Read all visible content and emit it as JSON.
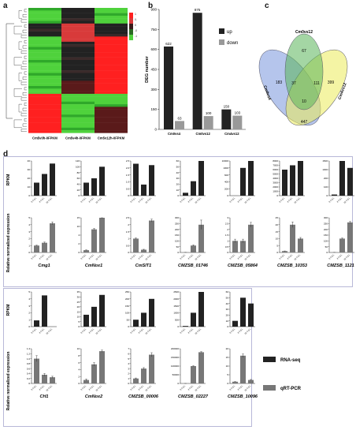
{
  "panels": {
    "a": {
      "letter": "a",
      "col_labels": [
        "Cm5v0h-0FPKM",
        "Cm5v4h-0FPKM",
        "Cm5v12h-0FPKM"
      ],
      "legend_ticks": [
        "1",
        "0.5",
        "0",
        "-0.5",
        "-1"
      ]
    },
    "b": {
      "letter": "b"
    },
    "c": {
      "letter": "c"
    },
    "d": {
      "letter": "d"
    }
  },
  "chart_data": [
    {
      "type": "bar",
      "id": "deg-counts",
      "ylabel": "DEG number",
      "ylim": [
        0,
        900
      ],
      "yticks": [
        0,
        150,
        300,
        450,
        600,
        750,
        900
      ],
      "categories": [
        "Cm0vs4",
        "Cm0vs12",
        "Cm4vs12"
      ],
      "series": [
        {
          "name": "up",
          "color": "#222222",
          "values": [
            622,
            875,
            150
          ]
        },
        {
          "name": "down",
          "color": "#999999",
          "values": [
            63,
            100,
            103
          ]
        }
      ],
      "legend": "top-right"
    },
    {
      "type": "venn",
      "id": "venn",
      "sets": [
        "Cm0vs4",
        "Cm0vs12",
        "Cm4vs12"
      ],
      "set_labels": [
        "Cm0vs4",
        "Cm0vs12",
        "Cm4vs12"
      ],
      "regions": {
        "only_0vs4": "183",
        "only_0vs12": "67",
        "only_4vs12": "399",
        "0vs4_0vs12": "37",
        "0vs12_4vs12": "111",
        "0vs4_4vs12": "447",
        "all": "10"
      }
    },
    {
      "type": "bar",
      "id": "validation",
      "ylabel_top": "RPKM",
      "ylabel_bottom": "Relative normalized expression",
      "x_tick_labels": [
        "0 h p.i.",
        "4 h p.i.",
        "12 h p.i."
      ],
      "legend": [
        {
          "name": "RNA-seq",
          "color": "#222222"
        },
        {
          "name": "qRT-PCR",
          "color": "#777777"
        }
      ],
      "genes": [
        {
          "name": "Cmg1",
          "rpkm": [
            15,
            25,
            37
          ],
          "rpkm_ticks": [
            "0",
            "10",
            "20",
            "30",
            "40"
          ],
          "qpcr": [
            1,
            1.4,
            4.2
          ],
          "qpcr_err": [
            0.05,
            0.1,
            0.2
          ],
          "qpcr_ticks": [
            "0",
            "1",
            "2",
            "3",
            "4",
            "5"
          ]
        },
        {
          "name": "CmNox1",
          "rpkm": [
            45,
            60,
            100
          ],
          "rpkm_ticks": [
            "0",
            "20",
            "40",
            "60",
            "80",
            "100",
            "120"
          ],
          "qpcr": [
            1,
            10,
            15.5
          ],
          "qpcr_err": [
            0.1,
            0.4,
            0.5
          ],
          "qpcr_ticks": [
            "0",
            "2",
            "4",
            "10",
            "15"
          ]
        },
        {
          "name": "CmSIT1",
          "rpkm": [
            2.3,
            0.8,
            2.2
          ],
          "rpkm_ticks": [
            "0",
            "0.5",
            "1.0",
            "1.5",
            "2.0",
            "2.5"
          ],
          "qpcr": [
            1,
            0.2,
            2.3
          ],
          "qpcr_err": [
            0.05,
            0.03,
            0.1
          ],
          "qpcr_ticks": [
            "0",
            "0.5",
            "1",
            "1.5",
            "2",
            "2.5"
          ]
        },
        {
          "name": "CMZSB_01746",
          "rpkm": [
            5,
            25,
            60
          ],
          "rpkm_ticks": [
            "0",
            "10",
            "20",
            "30",
            "40",
            "50",
            "60"
          ],
          "qpcr": [
            1,
            60,
            240
          ],
          "qpcr_err": [
            0.1,
            5,
            40
          ],
          "qpcr_ticks": [
            "0",
            "50",
            "100",
            "150",
            "200",
            "250",
            "300"
          ]
        },
        {
          "name": "CMZSB_05864",
          "rpkm": [
            2,
            8000,
            12000
          ],
          "rpkm_ticks": [
            "0",
            "200",
            "400",
            "600",
            "1000",
            "10000"
          ],
          "qpcr": [
            1,
            1,
            2.4
          ],
          "qpcr_err": [
            0.15,
            0.15,
            0.2
          ],
          "qpcr_ticks": [
            "0",
            "0.5",
            "1",
            "1.5",
            "2",
            "2.5",
            "3"
          ]
        },
        {
          "name": "CMZSB_10353",
          "rpkm": [
            6000,
            7000,
            9000
          ],
          "rpkm_ticks": [
            "0",
            "1000",
            "2000",
            "3000",
            "4000",
            "5000",
            "6000",
            "7000",
            "8000"
          ],
          "qpcr": [
            1,
            20,
            10
          ],
          "qpcr_err": [
            0.1,
            2,
            0.8
          ],
          "qpcr_ticks": [
            "0",
            "5",
            "10",
            "15",
            "20",
            "25"
          ]
        },
        {
          "name": "CMZSB_11219",
          "rpkm": [
            50,
            1500,
            1200
          ],
          "rpkm_ticks": [
            "0",
            "100",
            "200",
            "1000",
            "1500"
          ],
          "qpcr": [
            1,
            120,
            260
          ],
          "qpcr_err": [
            0.05,
            5,
            8
          ],
          "qpcr_ticks": [
            "0",
            "50",
            "100",
            "150",
            "200",
            "250",
            "300"
          ]
        },
        {
          "name": "CH1",
          "rpkm": [
            0.9,
            4.5,
            0
          ],
          "rpkm_ticks": [
            "0",
            "1",
            "2",
            "3",
            "4",
            "5"
          ],
          "qpcr": [
            1,
            0.35,
            0.25
          ],
          "qpcr_err": [
            0.12,
            0.05,
            0.04
          ],
          "qpcr_ticks": [
            "0",
            "0.2",
            "0.4",
            "0.6",
            "0.8",
            "1.0",
            "1.2",
            "1.4"
          ]
        },
        {
          "name": "CmNox2",
          "rpkm": [
            12,
            20,
            32
          ],
          "rpkm_ticks": [
            "0",
            "5",
            "10",
            "15",
            "20",
            "25",
            "30",
            "35"
          ],
          "qpcr": [
            1,
            5.5,
            9.3
          ],
          "qpcr_err": [
            0.3,
            0.5,
            0.3
          ],
          "qpcr_ticks": [
            "0",
            "2",
            "4",
            "6",
            "8",
            "10"
          ]
        },
        {
          "name": "CMZSB_00006",
          "rpkm": [
            50,
            100,
            200
          ],
          "rpkm_ticks": [
            "0",
            "50",
            "100",
            "150",
            "200",
            "250"
          ],
          "qpcr": [
            1,
            3,
            5.8
          ],
          "qpcr_err": [
            0.1,
            0.2,
            0.4
          ],
          "qpcr_ticks": [
            "0",
            "1",
            "2",
            "3",
            "4",
            "5",
            "6",
            "7"
          ]
        },
        {
          "name": "CMZSB_02227",
          "rpkm": [
            50,
            1000,
            2500
          ],
          "rpkm_ticks": [
            "0",
            "500",
            "1000",
            "1500",
            "2000",
            "2500"
          ],
          "qpcr": [
            1,
            100000,
            180000
          ],
          "qpcr_err": [
            0.1,
            2000,
            3000
          ],
          "qpcr_ticks": [
            "0",
            "50000",
            "100000",
            "150000",
            "200000"
          ]
        },
        {
          "name": "CMZSB_10096",
          "rpkm": [
            10,
            50,
            40
          ],
          "rpkm_ticks": [
            "0",
            "10",
            "20",
            "30",
            "40",
            "50",
            "60"
          ],
          "qpcr": [
            1,
            16,
            2
          ],
          "qpcr_err": [
            0.1,
            1,
            0.3
          ],
          "qpcr_ticks": [
            "0",
            "5",
            "10",
            "15",
            "20"
          ]
        }
      ]
    }
  ]
}
